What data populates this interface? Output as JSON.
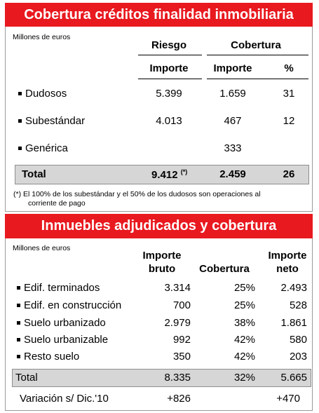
{
  "section1": {
    "title": "Cobertura créditos finalidad inmobiliaria",
    "unit_label": "Millones de euros",
    "col_riesgo": "Riesgo",
    "col_cobertura": "Cobertura",
    "sub_importe_1": "Importe",
    "sub_importe_2": "Importe",
    "sub_pct": "%",
    "rows": [
      {
        "label": "Dudosos",
        "riesgo": "5.399",
        "cob_importe": "1.659",
        "pct": "31"
      },
      {
        "label": "Subestándar",
        "riesgo": "4.013",
        "cob_importe": "467",
        "pct": "12"
      },
      {
        "label": "Genérica",
        "riesgo": "",
        "cob_importe": "333",
        "pct": ""
      }
    ],
    "total": {
      "label": "Total",
      "riesgo": "9.412",
      "note_mark": "(*)",
      "cob_importe": "2.459",
      "pct": "26"
    },
    "footnote_line1": "(*) El 100% de los subestándar y el 50% de los dudosos son operaciones al",
    "footnote_line2": "corriente de pago"
  },
  "section2": {
    "title": "Inmuebles adjudicados y cobertura",
    "unit_label": "Millones de euros",
    "col_bruto_1": "Importe",
    "col_bruto_2": "bruto",
    "col_cobertura": "Cobertura",
    "col_neto_1": "Importe",
    "col_neto_2": "neto",
    "rows": [
      {
        "label": "Edif. terminados",
        "bruto": "3.314",
        "cobertura": "25%",
        "neto": "2.493"
      },
      {
        "label": "Edif. en construcción",
        "bruto": "700",
        "cobertura": "25%",
        "neto": "528"
      },
      {
        "label": "Suelo urbanizado",
        "bruto": "2.979",
        "cobertura": "38%",
        "neto": "1.861"
      },
      {
        "label": "Suelo urbanizable",
        "bruto": "992",
        "cobertura": "42%",
        "neto": "580"
      },
      {
        "label": "Resto suelo",
        "bruto": "350",
        "cobertura": "42%",
        "neto": "203"
      }
    ],
    "total": {
      "label": "Total",
      "bruto": "8.335",
      "cobertura": "32%",
      "neto": "5.665"
    },
    "variation": {
      "label": "Variación s/ Dic.'10",
      "bruto": "+826",
      "neto": "+470"
    }
  }
}
